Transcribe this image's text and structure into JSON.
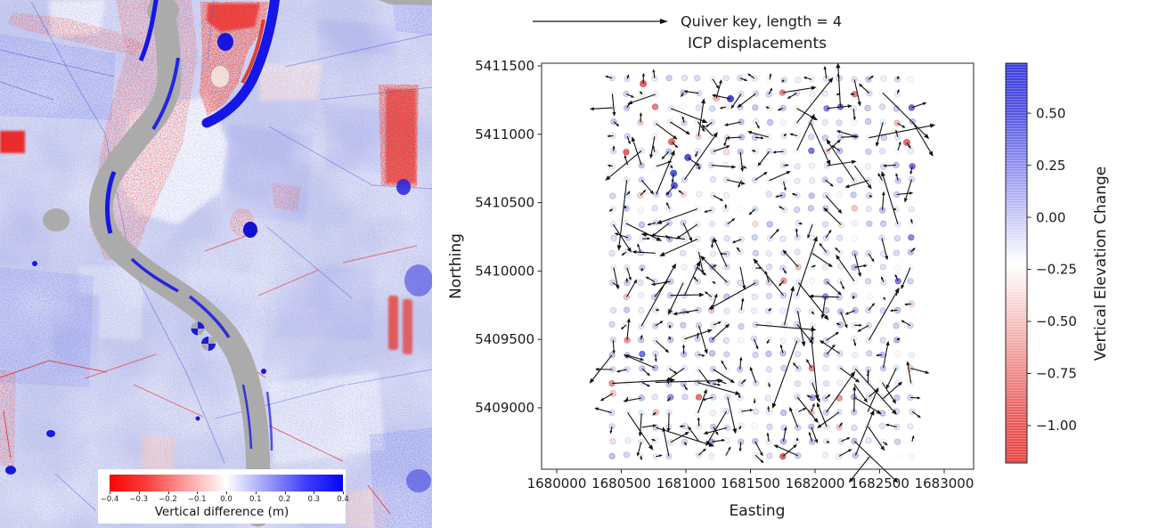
{
  "figure": {
    "panels": [
      "vertical-difference-map",
      "icp-displacements-quiver"
    ]
  },
  "chart_data": [
    {
      "type": "heatmap",
      "subtype": "raster-difference-map",
      "content": "LiDAR vertical difference raster: pale blue/white fields, gray meandering river channel, deep blue oxbow and channel-edge bands, red erosion/vegetation speckle along banks and in scattered fields",
      "colorbar": {
        "label": "Vertical difference (m)",
        "tick_labels": [
          "−0.4",
          "−0.3",
          "−0.2",
          "−0.1",
          "0.0",
          "0.1",
          "0.2",
          "0.3",
          "0.4"
        ],
        "vmin": -0.4,
        "vmax": 0.4,
        "colors": {
          "low": "#f60505",
          "mid": "#ffffff",
          "high": "#0505f6"
        }
      },
      "colors": {
        "river_gray": "#ababab",
        "deep_blue": "#1616e6",
        "strong_red": "#ee1b14",
        "field_tone": "#cbd0f0"
      }
    },
    {
      "type": "quiver",
      "title": "ICP displacements",
      "xlabel": "Easting",
      "ylabel": "Northing",
      "x_ticks": [
        1680000,
        1680500,
        1681000,
        1681500,
        1682000,
        1682500,
        1683000
      ],
      "y_ticks": [
        5411500,
        5411000,
        5410500,
        5410000,
        5409500,
        5409000
      ],
      "xlim": [
        1679880,
        1683230
      ],
      "ylim": [
        5408550,
        5411520
      ],
      "quiver_key": {
        "label": "Quiver key, length = 4",
        "length": 4
      },
      "colorbar": {
        "label": "Vertical Elevation Change",
        "ticks": [
          0.5,
          0.25,
          0,
          -0.25,
          -0.5,
          -0.75,
          -1
        ],
        "vmin": -1.18,
        "vmax": 0.74,
        "colors": {
          "low": "#e84545",
          "mid": "#ffffff",
          "high": "#3c3ce0"
        }
      },
      "grid": {
        "cols": 22,
        "rows": 27,
        "e0": 1680435,
        "n0": 5411405,
        "de": 110,
        "dn": 106,
        "seed": 1337,
        "missing_fraction": 0.08
      },
      "arrow_color": "#111111",
      "notable_points": [
        {
          "easting": 1680670,
          "northing": 5411370,
          "value": -1.05
        },
        {
          "easting": 1680890,
          "northing": 5410945,
          "value": -1.0
        },
        {
          "easting": 1682710,
          "northing": 5410940,
          "value": -1.0
        },
        {
          "easting": 1681235,
          "northing": 5411265,
          "value": -0.7
        },
        {
          "easting": 1681345,
          "northing": 5411260,
          "value": 0.72
        },
        {
          "easting": 1681015,
          "northing": 5410830,
          "value": 0.65
        },
        {
          "easting": 1680905,
          "northing": 5410715,
          "value": 0.6
        },
        {
          "easting": 1680910,
          "northing": 5410625,
          "value": 0.62
        },
        {
          "easting": 1680435,
          "northing": 5409105,
          "value": -0.6
        },
        {
          "easting": 1682745,
          "northing": 5409760,
          "value": -0.55
        }
      ]
    }
  ]
}
